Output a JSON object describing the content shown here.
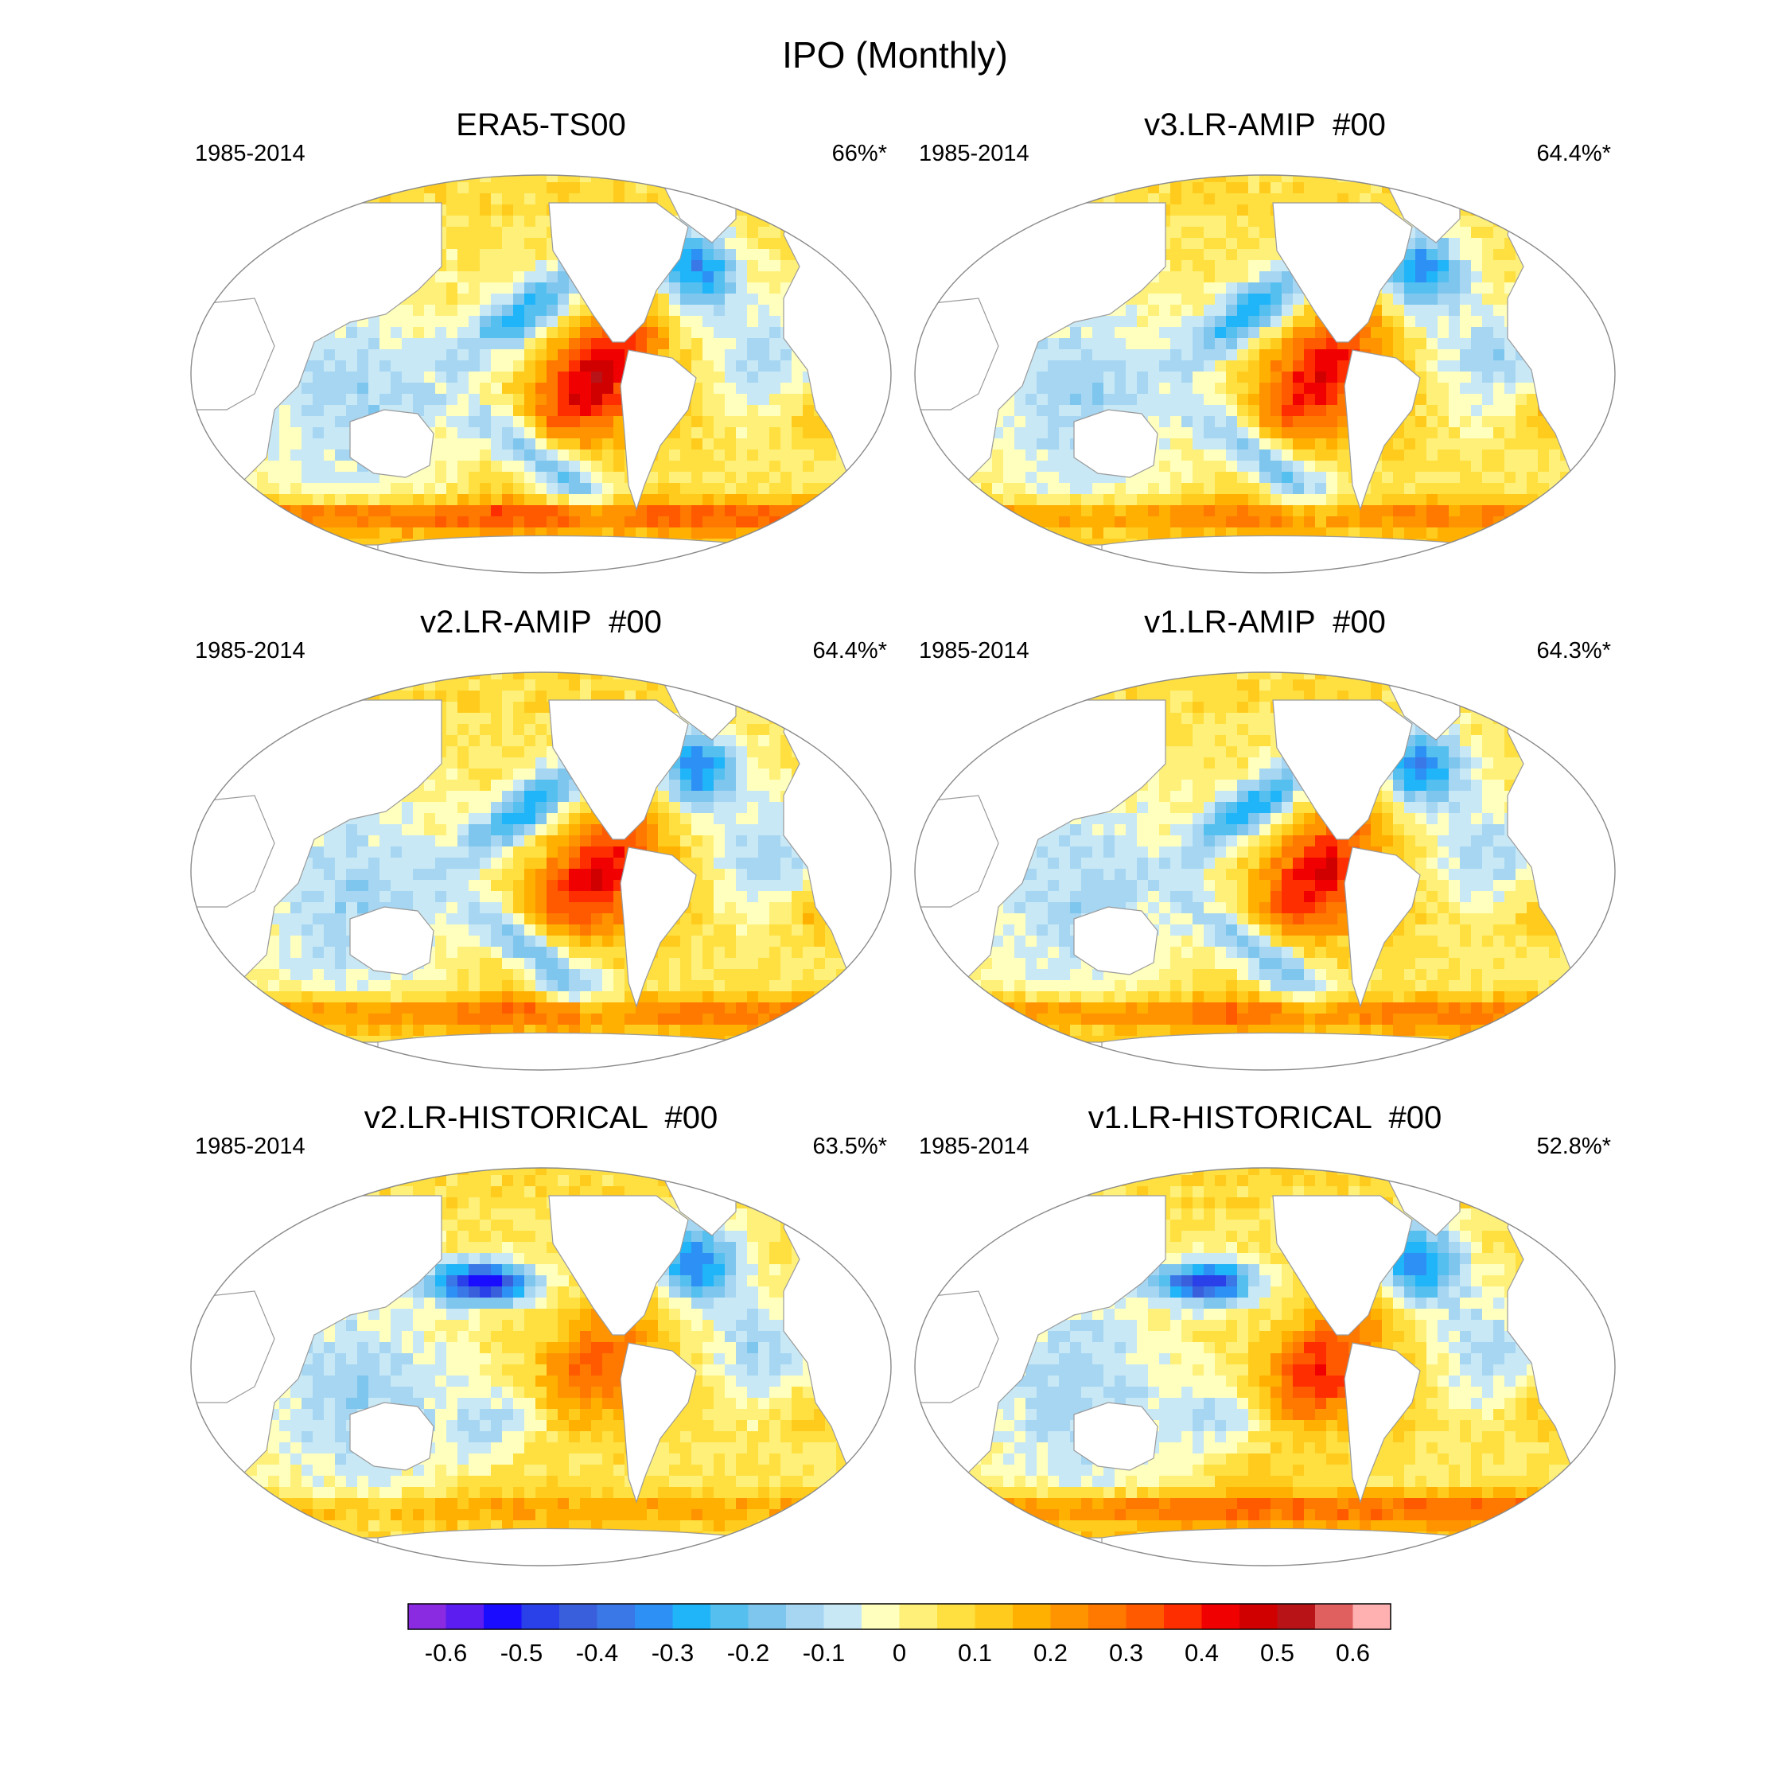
{
  "figure": {
    "title": "IPO (Monthly)"
  },
  "chart_data": {
    "type": "heatmap",
    "description_fields": [
      "title",
      "period",
      "variance_explained"
    ],
    "panels": [
      {
        "title": "ERA5-TS00",
        "period": "1985-2014",
        "variance_explained": "66%*"
      },
      {
        "title": "v3.LR-AMIP  #00",
        "period": "1985-2014",
        "variance_explained": "64.4%*"
      },
      {
        "title": "v2.LR-AMIP  #00",
        "period": "1985-2014",
        "variance_explained": "64.4%*"
      },
      {
        "title": "v1.LR-AMIP  #00",
        "period": "1985-2014",
        "variance_explained": "64.3%*"
      },
      {
        "title": "v2.LR-HISTORICAL  #00",
        "period": "1985-2014",
        "variance_explained": "63.5%*"
      },
      {
        "title": "v1.LR-HISTORICAL  #00",
        "period": "1985-2014",
        "variance_explained": "52.8%*"
      }
    ],
    "colorbar": {
      "colors": [
        "#8a2be2",
        "#5b1df0",
        "#1a0dff",
        "#2a40e8",
        "#3a5fdc",
        "#3a78e8",
        "#2c90f4",
        "#20b4f8",
        "#55c0ef",
        "#7fc6ee",
        "#a6d6f2",
        "#c8e8f6",
        "#ffffbe",
        "#fff07a",
        "#ffe040",
        "#ffcc1e",
        "#ffb000",
        "#ff9400",
        "#ff7800",
        "#ff5a00",
        "#ff2e00",
        "#f00000",
        "#d00000",
        "#b81418",
        "#e06060",
        "#ffb0b0"
      ],
      "tick_labels": [
        "-0.6",
        "-0.5",
        "-0.4",
        "-0.3",
        "-0.2",
        "-0.1",
        "0",
        "0.1",
        "0.2",
        "0.3",
        "0.4",
        "0.5",
        "0.6"
      ],
      "range": [
        -0.65,
        0.65
      ]
    }
  }
}
